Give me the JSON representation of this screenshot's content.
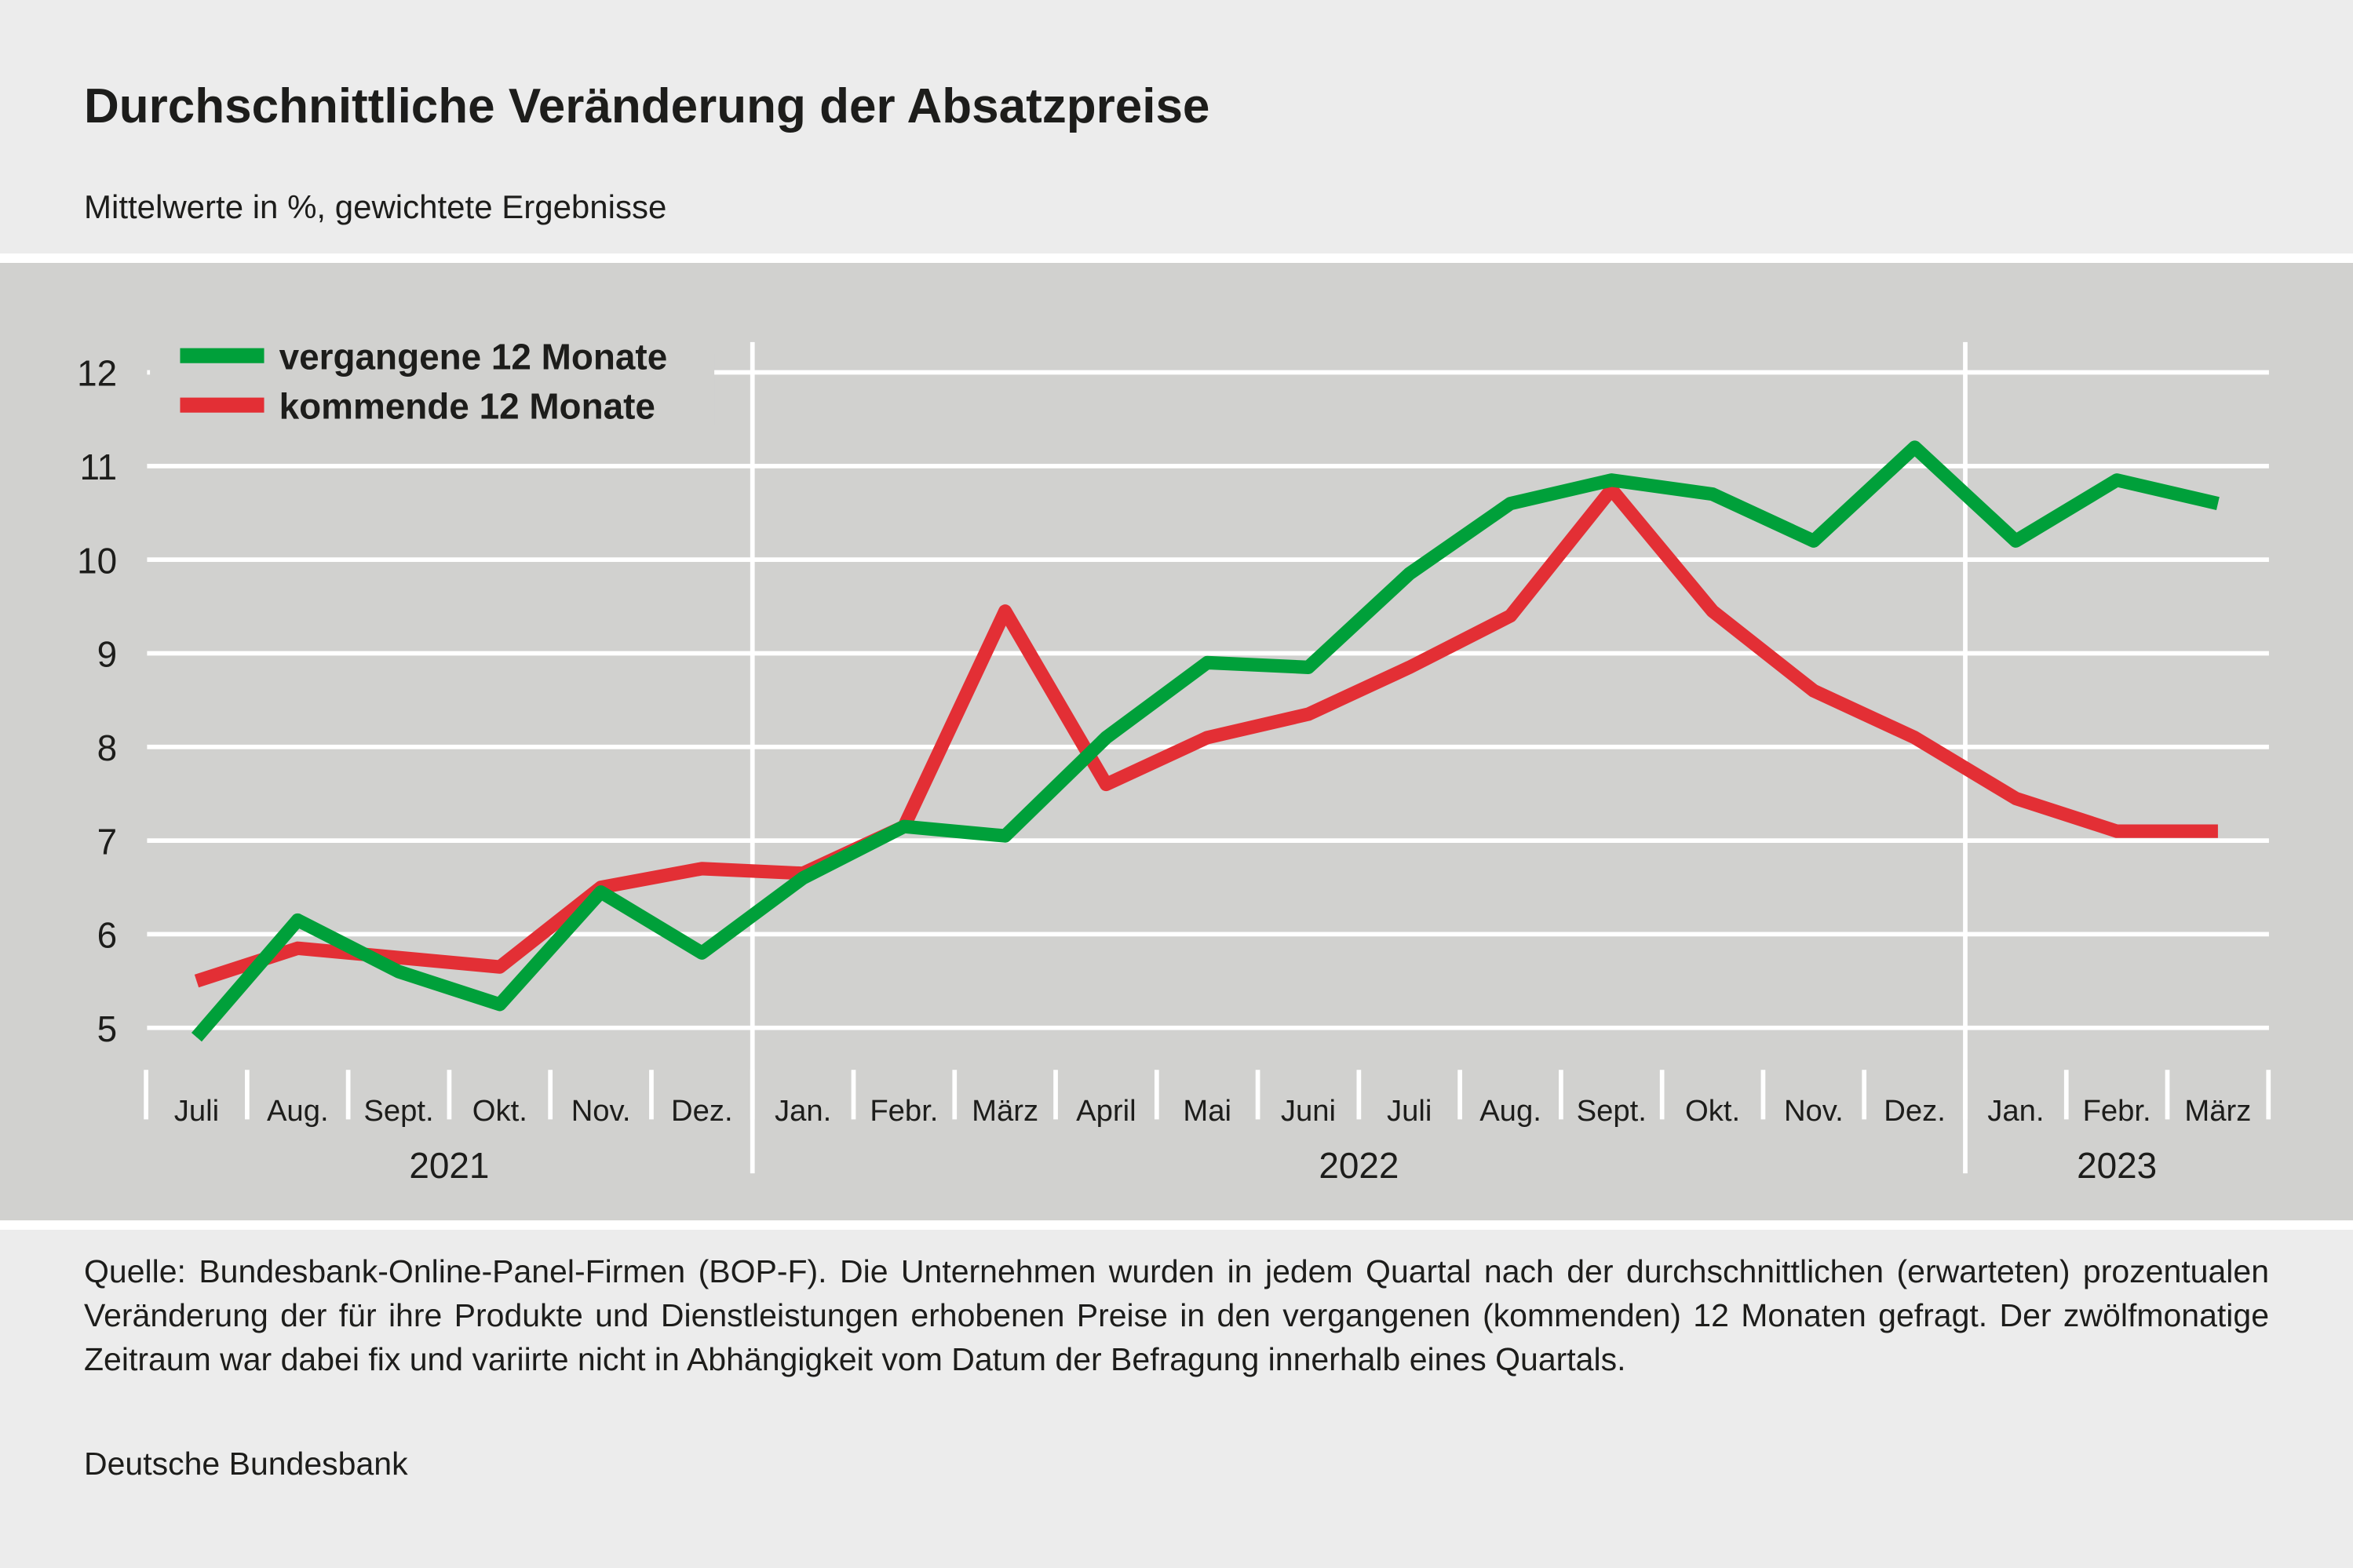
{
  "title": "Durchschnittliche Veränderung der Absatzpreise",
  "subtitle": "Mittelwerte in %, gewichtete Ergebnisse",
  "footnote": "Quelle: Bundesbank-Online-Panel-Firmen (BOP-F). Die Unternehmen wurden in jedem Quartal nach der durchschnittlichen (erwar­teten) prozentualen Veränderung der für ihre Produkte und Dienstleistungen erhobenen Preise in den vergangenen (kommenden) 12 Monaten gefragt. Der zwölfmonatige Zeitraum war dabei fix und variirte nicht in Abhängigkeit vom Datum der Befragung in­nerhalb eines Quartals.",
  "source": "Deutsche Bundesbank",
  "chart_data": {
    "type": "line",
    "title": "Durchschnittliche Veränderung der Absatzpreise",
    "ylabel": "",
    "xlabel": "",
    "ylim": [
      5,
      12
    ],
    "yticks": [
      "5",
      "6",
      "7",
      "8",
      "9",
      "10",
      "11",
      "12"
    ],
    "grid": true,
    "legend_position": "top-left",
    "categories": [
      "Juli",
      "Aug.",
      "Sept.",
      "Okt.",
      "Nov.",
      "Dez.",
      "Jan.",
      "Febr.",
      "März",
      "April",
      "Mai",
      "Juni",
      "Juli",
      "Aug.",
      "Sept.",
      "Okt.",
      "Nov.",
      "Dez.",
      "Jan.",
      "Febr.",
      "März"
    ],
    "years": [
      {
        "label": "2021",
        "start": 0,
        "end": 5
      },
      {
        "label": "2022",
        "start": 6,
        "end": 17
      },
      {
        "label": "2023",
        "start": 18,
        "end": 20
      }
    ],
    "series": [
      {
        "name": "vergangene 12 Monate",
        "color": "#00a03a",
        "values": [
          4.9,
          6.15,
          5.6,
          5.25,
          6.45,
          5.8,
          6.6,
          7.15,
          7.05,
          8.1,
          8.9,
          8.85,
          9.85,
          10.6,
          10.85,
          10.7,
          10.2,
          11.2,
          10.2,
          10.85,
          10.6
        ]
      },
      {
        "name": "kommende 12 Monate",
        "color": "#e32f35",
        "values": [
          5.5,
          5.85,
          5.75,
          5.65,
          6.5,
          6.7,
          6.65,
          7.15,
          9.45,
          7.6,
          8.1,
          8.35,
          8.85,
          9.4,
          10.75,
          9.45,
          8.6,
          8.1,
          7.45,
          7.1,
          7.1
        ]
      }
    ]
  }
}
